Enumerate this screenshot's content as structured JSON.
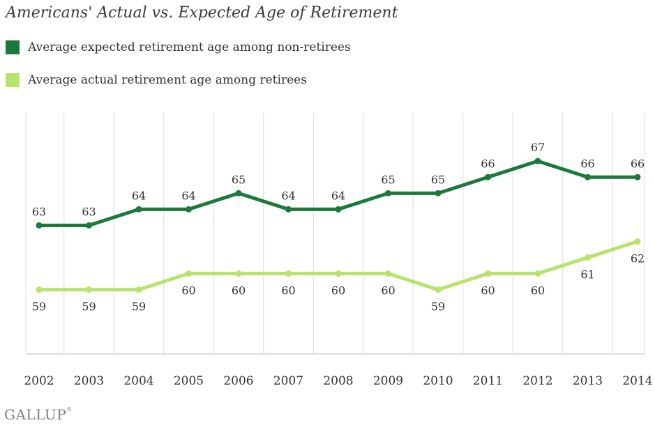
{
  "chart_data": {
    "type": "line",
    "title": "Americans' Actual vs. Expected Age of Retirement",
    "xlabel": "",
    "ylabel": "",
    "categories": [
      "2002",
      "2003",
      "2004",
      "2005",
      "2006",
      "2007",
      "2008",
      "2009",
      "2010",
      "2011",
      "2012",
      "2013",
      "2014"
    ],
    "ylim": [
      55,
      70
    ],
    "grid": "vertical",
    "legend_position": "top-left",
    "series": [
      {
        "name": "Average expected retirement age among non-retirees",
        "color": "#1b7a3a",
        "values": [
          63,
          63,
          64,
          64,
          65,
          64,
          64,
          65,
          65,
          66,
          67,
          66,
          66
        ],
        "labels": [
          "63",
          "63",
          "64",
          "64",
          "65",
          "64",
          "64",
          "65",
          "65",
          "66",
          "67",
          "66",
          "66"
        ],
        "label_position": "above"
      },
      {
        "name": "Average actual retirement age among retirees",
        "color": "#b8e36a",
        "values": [
          59,
          59,
          59,
          60,
          60,
          60,
          60,
          60,
          59,
          60,
          60,
          61,
          62
        ],
        "labels": [
          "59",
          "59",
          "59",
          "60",
          "60",
          "60",
          "60",
          "60",
          "59",
          "60",
          "60",
          "61",
          "62"
        ],
        "label_position": "below"
      }
    ]
  },
  "footer": {
    "logo_text": "GALLUP",
    "logo_mark": "®"
  }
}
